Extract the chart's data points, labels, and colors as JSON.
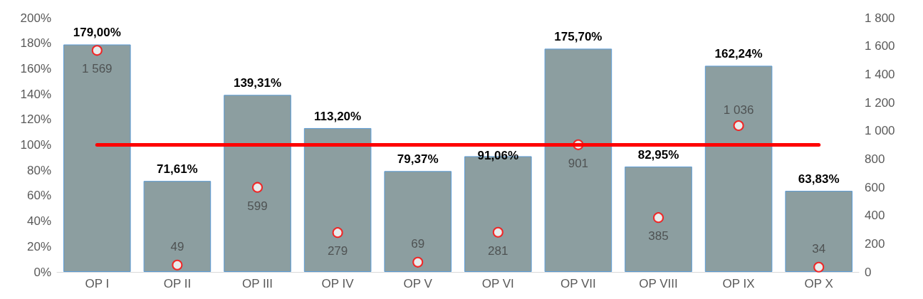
{
  "chart_data": {
    "type": "bar",
    "categories": [
      "OP I",
      "OP II",
      "OP III",
      "OP IV",
      "OP V",
      "OP VI",
      "OP VII",
      "OP VIII",
      "OP IX",
      "OP X"
    ],
    "series": [
      {
        "color": "#8c9ea0",
        "values": [
          179.0,
          71.61,
          139.31,
          113.2,
          79.37,
          91.06,
          175.7,
          82.95,
          162.24,
          63.83
        ],
        "value_labels": [
          "179,00%",
          "71,61%",
          "139,31%",
          "113,20%",
          "79,37%",
          "91,06%",
          "175,70%",
          "82,95%",
          "162,24%",
          "63,83%"
        ]
      },
      {
        "type": "scatter",
        "axis": "y2",
        "color": "#ff0000",
        "marker": "circle",
        "x": [
          "OP I",
          "OP II",
          "OP III",
          "OP IV",
          "OP V",
          "OP VI",
          "OP VII",
          "OP VIII",
          "OP IX",
          "OP X"
        ],
        "values": [
          1569,
          49,
          599,
          279,
          69,
          281,
          901,
          385,
          1036,
          34
        ],
        "value_labels": [
          "1 569",
          "49",
          "599",
          "279",
          "69",
          "281",
          "901",
          "385",
          "1 036",
          "34"
        ]
      }
    ],
    "ylim": [
      0,
      200
    ],
    "yticks": [
      {
        "value": 0,
        "label": "0%"
      },
      {
        "value": 20,
        "label": "20%"
      },
      {
        "value": 40,
        "label": "40%"
      },
      {
        "value": 60,
        "label": "60%"
      },
      {
        "value": 80,
        "label": "80%"
      },
      {
        "value": 100,
        "label": "100%"
      },
      {
        "value": 120,
        "label": "120%"
      },
      {
        "value": 140,
        "label": "140%"
      },
      {
        "value": 160,
        "label": "160%"
      },
      {
        "value": 180,
        "label": "180%"
      },
      {
        "value": 200,
        "label": "200%"
      }
    ],
    "y2lim": [
      0,
      1800
    ],
    "y2ticks": [
      0,
      {
        "value": 200,
        "label": "200"
      },
      400,
      600,
      800,
      {
        "value": 1000,
        "label": "1 000"
      },
      {
        "value": 1200,
        "label": "1 200"
      },
      {
        "value": 1400,
        "label": "1 400"
      },
      {
        "value": 1600,
        "label": "1 600"
      },
      {
        "value": 1800,
        "label": "1 800"
      }
    ],
    "ref_lines": [
      {
        "axis": "y",
        "value": 100,
        "color": "#ff0000",
        "line_style": "solid"
      }
    ]
  }
}
